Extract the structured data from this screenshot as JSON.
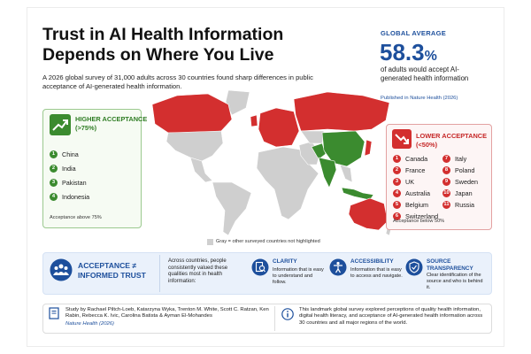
{
  "header": {
    "title_lines": [
      "Trust in AI Health Information",
      "Depends on Where You Live"
    ],
    "subtitle": "A 2026 global survey of 31,000 adults across 30 countries found sharp differences in public acceptance of AI-generated health information."
  },
  "global_average": {
    "label": "GLOBAL AVERAGE",
    "value": "58.3",
    "unit": "%",
    "description": "of adults would accept AI-generated health information",
    "source": "Published in Nature Health (2026)"
  },
  "higher_acceptance": {
    "title": "HIGHER ACCEPTANCE",
    "threshold": "(>75%)",
    "countries": [
      {
        "rank": 1,
        "name": "China"
      },
      {
        "rank": 2,
        "name": "India"
      },
      {
        "rank": 3,
        "name": "Pakistan"
      },
      {
        "rank": 4,
        "name": "Indonesia"
      }
    ],
    "note": "Acceptance above 75%"
  },
  "lower_acceptance": {
    "title": "LOWER ACCEPTANCE",
    "threshold": "(<50%)",
    "countries": [
      {
        "rank": 1,
        "name": "Canada"
      },
      {
        "rank": 2,
        "name": "France"
      },
      {
        "rank": 3,
        "name": "UK"
      },
      {
        "rank": 4,
        "name": "Australia"
      },
      {
        "rank": 5,
        "name": "Belgium"
      },
      {
        "rank": 6,
        "name": "Switzerland"
      },
      {
        "rank": 7,
        "name": "Italy"
      },
      {
        "rank": 8,
        "name": "Poland"
      },
      {
        "rank": 9,
        "name": "Sweden"
      },
      {
        "rank": 10,
        "name": "Japan"
      },
      {
        "rank": 11,
        "name": "Russia"
      }
    ],
    "note": "Acceptance below 50%"
  },
  "map": {
    "legend": "Gray = other surveyed countries not highlighted"
  },
  "insight": {
    "title_lines": [
      "ACCEPTANCE ≠",
      "INFORMED TRUST"
    ],
    "text": "Across countries, people consistently valued these qualities most in health information:",
    "qualities": [
      {
        "title": "CLARITY",
        "text": "Information that is easy to understand and follow."
      },
      {
        "title": "ACCESSIBILITY",
        "text": "Information that is easy to access and navigate."
      },
      {
        "title": "SOURCE TRANSPARENCY",
        "text": "Clear identification of the source and who is behind it."
      }
    ]
  },
  "footer": {
    "citation": "Study by Rachael Piltch-Loeb, Katarzyna Wyka, Trenton M. White, Scott C. Ratzan, Ken Rabin, Rebecca K. Ivic, Carolina Batista & Ayman El-Mohandes",
    "journal": "Nature Health (2026)",
    "about": "This landmark global survey explored perceptions of quality health information, digital health literacy, and acceptance of AI-generated health information across 30 countries and all major regions of the world."
  }
}
